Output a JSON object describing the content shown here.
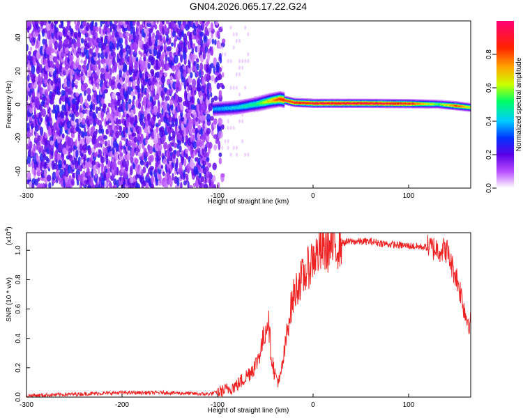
{
  "title": "GN04.2026.065.17.22.G24",
  "chart_data": [
    {
      "type": "heatmap",
      "xlabel": "Height of straight line (km)",
      "ylabel": "Frequency (Hz)",
      "xlim": [
        -300,
        165
      ],
      "ylim": [
        -50,
        50
      ],
      "xticks": [
        -300,
        -200,
        -100,
        0,
        100
      ],
      "yticks": [
        -40,
        -20,
        0,
        20,
        40
      ],
      "colorbar": {
        "label": "Normalized spectral amplitude",
        "range": [
          0,
          1
        ],
        "ticks": [
          "0.0",
          "0.2",
          "0.4",
          "0.6",
          "0.8"
        ],
        "colors": [
          "#ffffff",
          "#b84dff",
          "#5a00e6",
          "#0033ff",
          "#00ccff",
          "#00ff66",
          "#ccff00",
          "#ffaa00",
          "#ff2200",
          "#ff0077"
        ]
      },
      "noise_region": {
        "x_from": -300,
        "x_to": -95,
        "amplitude": 0.2
      },
      "ridge": [
        {
          "x": -105,
          "freq": -3,
          "amp": 0.4
        },
        {
          "x": -80,
          "freq": -2,
          "amp": 0.45
        },
        {
          "x": -60,
          "freq": 0,
          "amp": 0.55
        },
        {
          "x": -45,
          "freq": 2,
          "amp": 0.75
        },
        {
          "x": -35,
          "freq": 3,
          "amp": 0.9
        },
        {
          "x": -20,
          "freq": 1,
          "amp": 0.95
        },
        {
          "x": 0,
          "freq": 0.5,
          "amp": 0.98
        },
        {
          "x": 50,
          "freq": 0.5,
          "amp": 1.0
        },
        {
          "x": 100,
          "freq": 0.3,
          "amp": 0.95
        },
        {
          "x": 130,
          "freq": 0,
          "amp": 0.6
        },
        {
          "x": 150,
          "freq": -1,
          "amp": 0.9
        },
        {
          "x": 165,
          "freq": -2,
          "amp": 0.7
        }
      ]
    },
    {
      "type": "line",
      "xlabel": "Height of straight line (km)",
      "ylabel": "SNR (10 * v/v)",
      "yscale_label": "(x10",
      "yscale_exp": "4",
      "yscale_close": ")",
      "xlim": [
        -300,
        165
      ],
      "ylim": [
        0,
        1.12
      ],
      "xticks": [
        -300,
        -200,
        -100,
        0,
        100
      ],
      "yticks": [
        "0.0",
        "0.2",
        "0.4",
        "0.6",
        "0.8",
        "1.0"
      ],
      "line_color": "#ee2222",
      "series": [
        {
          "x": [
            -300,
            -250,
            -200,
            -150,
            -110,
            -95,
            -80,
            -70,
            -60,
            -55,
            -50,
            -47,
            -44,
            -40,
            -35,
            -30,
            -25,
            -20,
            -15,
            -10,
            -5,
            0,
            10,
            20,
            30,
            40,
            60,
            80,
            100,
            120,
            130,
            140,
            145,
            150,
            155,
            160,
            165
          ],
          "values": [
            0.01,
            0.02,
            0.03,
            0.03,
            0.02,
            0.04,
            0.08,
            0.14,
            0.22,
            0.32,
            0.45,
            0.55,
            0.3,
            0.15,
            0.1,
            0.3,
            0.55,
            0.7,
            0.78,
            0.82,
            0.88,
            0.95,
            1.0,
            1.02,
            1.05,
            1.06,
            1.06,
            1.04,
            1.03,
            1.02,
            1.01,
            1.0,
            0.9,
            0.82,
            0.7,
            0.55,
            0.5
          ]
        }
      ]
    }
  ]
}
